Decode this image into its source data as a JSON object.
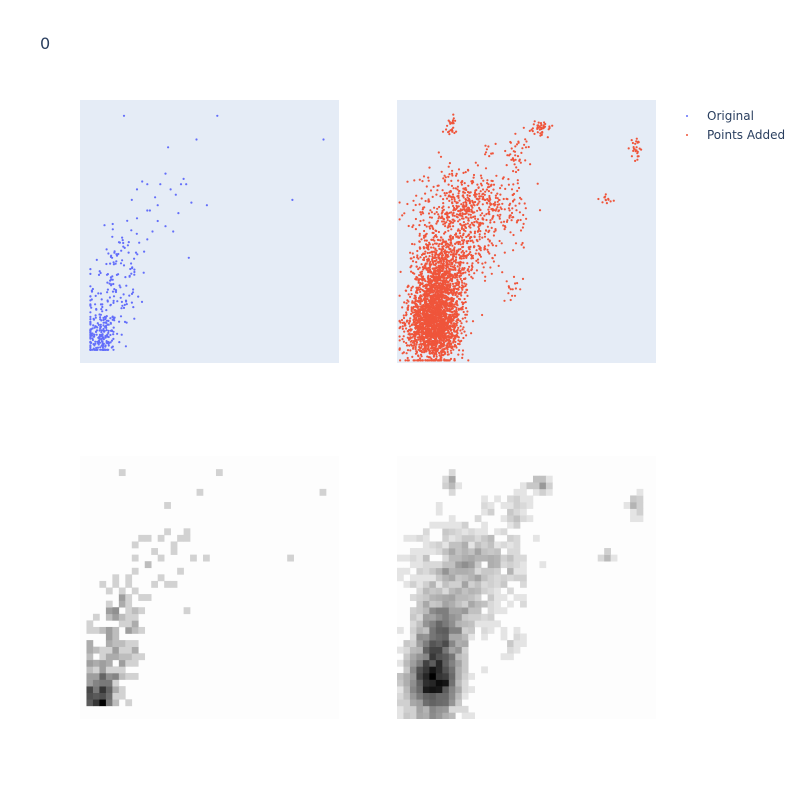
{
  "title": "0",
  "legend": [
    {
      "name": "Original",
      "color": "#636efa"
    },
    {
      "name": "Points Added",
      "color": "#ef553b"
    }
  ],
  "chart_data": [
    {
      "type": "scatter",
      "panel": "top-left",
      "series_name": "Original",
      "color": "#636efa",
      "plot_bgcolor": "#e5ecf6",
      "xlim": [
        0,
        100
      ],
      "ylim": [
        0,
        100
      ],
      "grid": false,
      "ticks": false,
      "outliers": [
        [
          17,
          94
        ],
        [
          53,
          94
        ],
        [
          94,
          85
        ],
        [
          45,
          85
        ],
        [
          34,
          82
        ],
        [
          82,
          62
        ],
        [
          49,
          60
        ],
        [
          39,
          68
        ],
        [
          40,
          70
        ],
        [
          41,
          68
        ],
        [
          43,
          61
        ],
        [
          33,
          52
        ],
        [
          26,
          58
        ],
        [
          38,
          57
        ],
        [
          37,
          64
        ],
        [
          42,
          40
        ],
        [
          20,
          62
        ],
        [
          22,
          66
        ],
        [
          24,
          69
        ],
        [
          27,
          58
        ],
        [
          29,
          63
        ],
        [
          30,
          60
        ],
        [
          30,
          54
        ],
        [
          31,
          68
        ],
        [
          33,
          72
        ],
        [
          35,
          66
        ],
        [
          36,
          50
        ],
        [
          26,
          68
        ],
        [
          22,
          55
        ],
        [
          28,
          50
        ],
        [
          26,
          47
        ]
      ],
      "clusters": [
        {
          "cx": 8,
          "cy": 10,
          "sx": 3.5,
          "sy": 5,
          "n": 190
        },
        {
          "cx": 12,
          "cy": 25,
          "sx": 5,
          "sy": 9,
          "n": 110
        },
        {
          "cx": 17,
          "cy": 42,
          "sx": 5,
          "sy": 6,
          "n": 45
        }
      ],
      "x_range": [
        4,
        33
      ],
      "y_range": [
        5,
        96
      ]
    },
    {
      "type": "scatter",
      "panel": "top-right",
      "series_name": "Points Added",
      "color": "#ef553b",
      "plot_bgcolor": "#e5ecf6",
      "xlim": [
        0,
        100
      ],
      "ylim": [
        0,
        100
      ],
      "grid": false,
      "ticks": false,
      "clusters": [
        {
          "cx": 14,
          "cy": 15,
          "sx": 5,
          "sy": 7,
          "n": 1800
        },
        {
          "cx": 17,
          "cy": 32,
          "sx": 5,
          "sy": 8,
          "n": 900
        },
        {
          "cx": 21,
          "cy": 52,
          "sx": 8,
          "sy": 10,
          "n": 350
        },
        {
          "cx": 28,
          "cy": 62,
          "sx": 8,
          "sy": 6,
          "n": 280
        },
        {
          "cx": 32,
          "cy": 44,
          "sx": 5,
          "sy": 6,
          "n": 90
        },
        {
          "cx": 44,
          "cy": 58,
          "sx": 4,
          "sy": 6,
          "n": 60
        },
        {
          "cx": 46,
          "cy": 80,
          "sx": 2,
          "sy": 3,
          "n": 40
        },
        {
          "cx": 55,
          "cy": 89,
          "sx": 2,
          "sy": 1.5,
          "n": 40
        },
        {
          "cx": 21,
          "cy": 90,
          "sx": 1.2,
          "sy": 2,
          "n": 25
        },
        {
          "cx": 92,
          "cy": 82,
          "sx": 1.2,
          "sy": 2,
          "n": 25
        },
        {
          "cx": 81,
          "cy": 62,
          "sx": 1.5,
          "sy": 1.2,
          "n": 12
        },
        {
          "cx": 44,
          "cy": 28,
          "sx": 2,
          "sy": 2,
          "n": 15
        },
        {
          "cx": 36,
          "cy": 78,
          "sx": 2,
          "sy": 3,
          "n": 10
        }
      ]
    },
    {
      "type": "heatmap",
      "panel": "bottom-left",
      "colorscale": "greys",
      "bins": [
        40,
        40
      ],
      "source": "Original"
    },
    {
      "type": "heatmap",
      "panel": "bottom-right",
      "colorscale": "greys",
      "bins": [
        40,
        40
      ],
      "source": "Points Added"
    }
  ]
}
